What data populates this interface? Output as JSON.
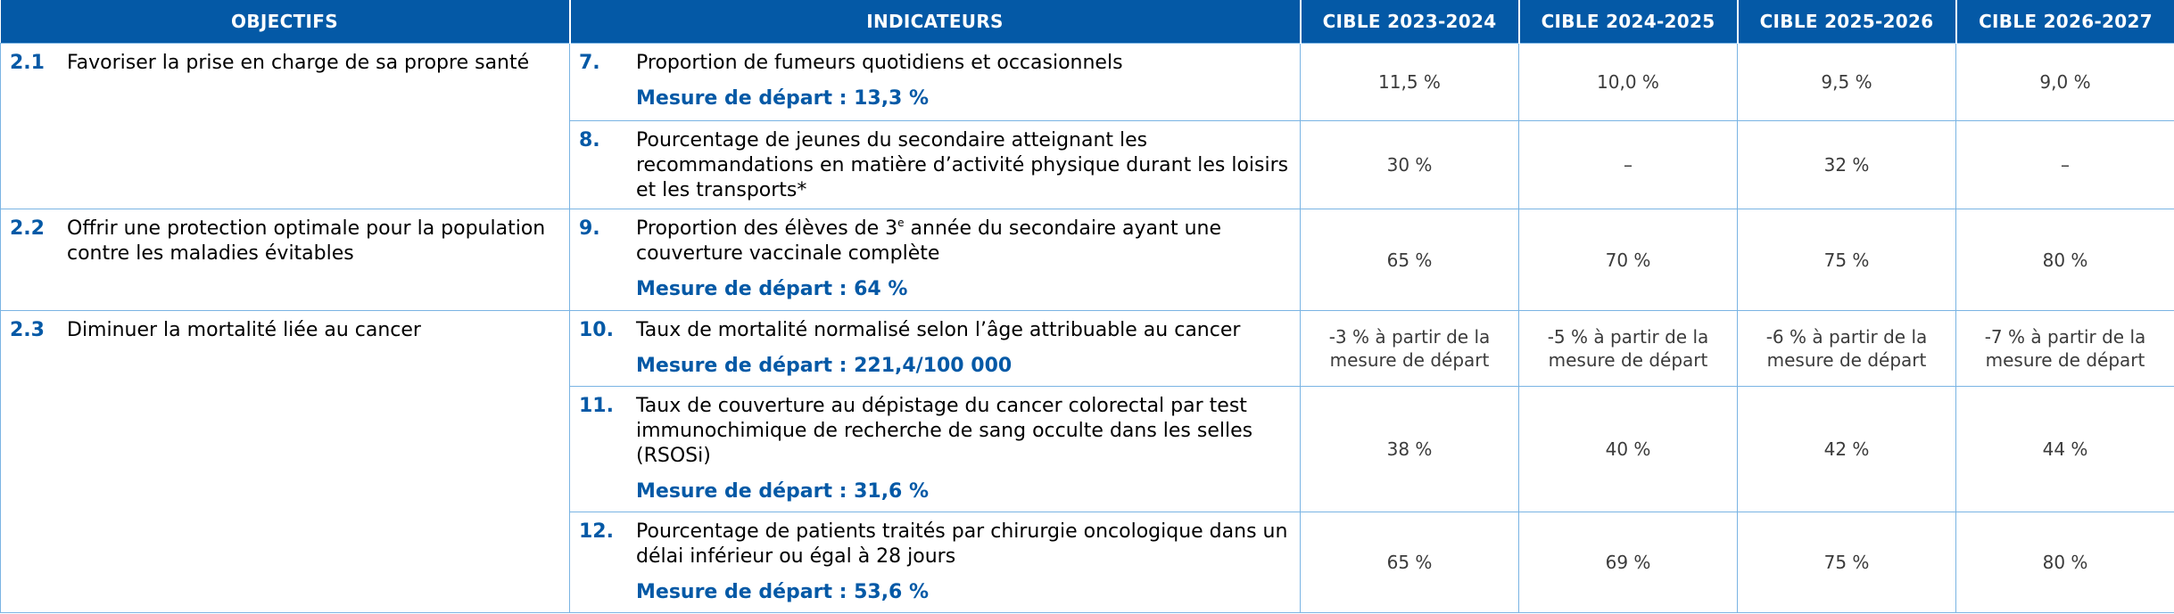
{
  "header": {
    "col_objectifs": "OBJECTIFS",
    "col_indicateurs": "INDICATEURS",
    "col_t1": "CIBLE 2023-2024",
    "col_t2": "CIBLE 2024-2025",
    "col_t3": "CIBLE 2025-2026",
    "col_t4": "CIBLE 2026-2027"
  },
  "objectives": [
    {
      "num": "2.1",
      "text": "Favoriser la prise en charge de sa propre santé"
    },
    {
      "num": "2.2",
      "text": "Offrir une protection optimale pour la population contre les maladies évitables"
    },
    {
      "num": "2.3",
      "text": "Diminuer la mortalité liée au cancer"
    }
  ],
  "indicators": [
    {
      "num": "7.",
      "text": "Proportion de fumeurs quotidiens et occasionnels",
      "baseline": "Mesure de départ : 13,3 %",
      "targets": [
        "11,5 %",
        "10,0 %",
        "9,5 %",
        "9,0 %"
      ]
    },
    {
      "num": "8.",
      "text": "Pourcentage de jeunes du secondaire atteignant les recommandations en matière d’activité physique durant les loisirs et les transports*",
      "baseline": "",
      "targets": [
        "30 %",
        "–",
        "32 %",
        "–"
      ]
    },
    {
      "num": "9.",
      "text_pre": "Proportion des élèves de 3",
      "text_sup": "e",
      "text_post": " année du secondaire ayant une couverture vaccinale complète",
      "baseline": "Mesure de départ : 64 %",
      "targets": [
        "65 %",
        "70 %",
        "75 %",
        "80 %"
      ]
    },
    {
      "num": "10.",
      "text": "Taux de mortalité normalisé selon l’âge attribuable au cancer",
      "baseline": "Mesure de départ : 221,4/100 000",
      "targets": [
        "-3 % à partir de la mesure de départ",
        "-5 % à partir de la mesure de départ",
        "-6 % à partir de la mesure de départ",
        "-7 % à partir de la mesure de départ"
      ]
    },
    {
      "num": "11.",
      "text": "Taux de couverture au dépistage du cancer colorectal par test immunochimique de recherche de sang occulte dans les selles (RSOSi)",
      "baseline": "Mesure de départ : 31,6 %",
      "targets": [
        "38 %",
        "40 %",
        "42 %",
        "44 %"
      ]
    },
    {
      "num": "12.",
      "text": "Pourcentage de patients traités par chirurgie oncologique dans un délai inférieur ou égal à 28 jours",
      "baseline": "Mesure de départ : 53,6 %",
      "targets": [
        "65 %",
        "69 %",
        "75 %",
        "80 %"
      ]
    }
  ]
}
